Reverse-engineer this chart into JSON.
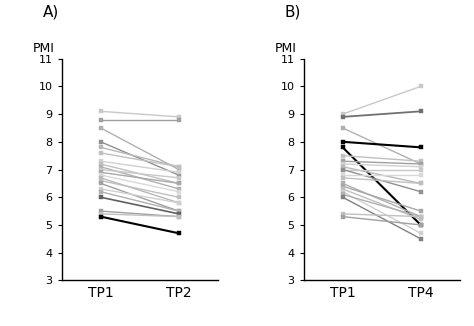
{
  "panel_A": {
    "label": "A)",
    "xlabel_tp1": "TP1",
    "xlabel_tp2": "TP2",
    "ylabel": "PMI",
    "lines": [
      {
        "tp1": 9.1,
        "tp2": 8.9,
        "color": "#c8c8c8",
        "lw": 1.0
      },
      {
        "tp1": 8.8,
        "tp2": 8.8,
        "color": "#a0a0a0",
        "lw": 1.0
      },
      {
        "tp1": 8.5,
        "tp2": 7.0,
        "color": "#b0b0b0",
        "lw": 1.0
      },
      {
        "tp1": 8.0,
        "tp2": 6.8,
        "color": "#909090",
        "lw": 1.0
      },
      {
        "tp1": 7.8,
        "tp2": 7.1,
        "color": "#b8b8b8",
        "lw": 1.0
      },
      {
        "tp1": 7.6,
        "tp2": 7.1,
        "color": "#c0c0c0",
        "lw": 1.0
      },
      {
        "tp1": 7.3,
        "tp2": 6.9,
        "color": "#d0d0d0",
        "lw": 1.0
      },
      {
        "tp1": 7.2,
        "tp2": 6.5,
        "color": "#c0c0c0",
        "lw": 1.0
      },
      {
        "tp1": 7.1,
        "tp2": 6.3,
        "color": "#b0b0b0",
        "lw": 1.0
      },
      {
        "tp1": 7.0,
        "tp2": 6.7,
        "color": "#c8c8c8",
        "lw": 1.0
      },
      {
        "tp1": 6.9,
        "tp2": 6.5,
        "color": "#a8a8a8",
        "lw": 1.0
      },
      {
        "tp1": 6.8,
        "tp2": 6.2,
        "color": "#d8d8d8",
        "lw": 1.0
      },
      {
        "tp1": 6.7,
        "tp2": 5.8,
        "color": "#b8b8b8",
        "lw": 1.0
      },
      {
        "tp1": 6.6,
        "tp2": 6.0,
        "color": "#c0c0c0",
        "lw": 1.0
      },
      {
        "tp1": 6.5,
        "tp2": 5.5,
        "color": "#a0a0a0",
        "lw": 1.0
      },
      {
        "tp1": 6.3,
        "tp2": 5.8,
        "color": "#d0d0d0",
        "lw": 1.0
      },
      {
        "tp1": 6.2,
        "tp2": 5.5,
        "color": "#b0b0b0",
        "lw": 1.0
      },
      {
        "tp1": 6.0,
        "tp2": 5.4,
        "color": "#606060",
        "lw": 1.2
      },
      {
        "tp1": 5.5,
        "tp2": 5.3,
        "color": "#a0a0a0",
        "lw": 1.0
      },
      {
        "tp1": 5.4,
        "tp2": 5.3,
        "color": "#c0c0c0",
        "lw": 1.0
      },
      {
        "tp1": 5.3,
        "tp2": 4.7,
        "color": "#000000",
        "lw": 1.5
      }
    ]
  },
  "panel_B": {
    "label": "B)",
    "xlabel_tp1": "TP1",
    "xlabel_tp2": "TP4",
    "ylabel": "PMI",
    "lines": [
      {
        "tp1": 9.0,
        "tp2": 10.0,
        "color": "#c8c8c8",
        "lw": 1.0
      },
      {
        "tp1": 8.9,
        "tp2": 9.1,
        "color": "#707070",
        "lw": 1.3
      },
      {
        "tp1": 8.5,
        "tp2": 7.2,
        "color": "#b0b0b0",
        "lw": 1.0
      },
      {
        "tp1": 8.0,
        "tp2": 7.8,
        "color": "#000000",
        "lw": 1.5
      },
      {
        "tp1": 7.8,
        "tp2": 5.0,
        "color": "#000000",
        "lw": 1.5
      },
      {
        "tp1": 7.5,
        "tp2": 7.3,
        "color": "#c0c0c0",
        "lw": 1.0
      },
      {
        "tp1": 7.3,
        "tp2": 7.2,
        "color": "#a0a0a0",
        "lw": 1.0
      },
      {
        "tp1": 7.2,
        "tp2": 7.1,
        "color": "#d0d0d0",
        "lw": 1.0
      },
      {
        "tp1": 7.1,
        "tp2": 6.5,
        "color": "#b8b8b8",
        "lw": 1.0
      },
      {
        "tp1": 7.0,
        "tp2": 7.0,
        "color": "#c8c8c8",
        "lw": 1.0
      },
      {
        "tp1": 7.0,
        "tp2": 6.2,
        "color": "#909090",
        "lw": 1.0
      },
      {
        "tp1": 6.8,
        "tp2": 6.8,
        "color": "#d8d8d8",
        "lw": 1.0
      },
      {
        "tp1": 6.7,
        "tp2": 6.5,
        "color": "#c0c0c0",
        "lw": 1.0
      },
      {
        "tp1": 6.5,
        "tp2": 5.3,
        "color": "#b0b0b0",
        "lw": 1.0
      },
      {
        "tp1": 6.4,
        "tp2": 5.5,
        "color": "#a8a8a8",
        "lw": 1.0
      },
      {
        "tp1": 6.3,
        "tp2": 5.2,
        "color": "#c0c0c0",
        "lw": 1.0
      },
      {
        "tp1": 6.2,
        "tp2": 4.7,
        "color": "#d0d0d0",
        "lw": 1.0
      },
      {
        "tp1": 6.1,
        "tp2": 5.3,
        "color": "#b0b0b0",
        "lw": 1.0
      },
      {
        "tp1": 6.0,
        "tp2": 4.5,
        "color": "#808080",
        "lw": 1.0
      },
      {
        "tp1": 5.4,
        "tp2": 5.3,
        "color": "#c0c0c0",
        "lw": 1.0
      },
      {
        "tp1": 5.3,
        "tp2": 5.0,
        "color": "#a0a0a0",
        "lw": 1.0
      }
    ]
  },
  "ylim": [
    3,
    11
  ],
  "yticks": [
    3,
    4,
    5,
    6,
    7,
    8,
    9,
    10,
    11
  ],
  "markersize": 2.5
}
